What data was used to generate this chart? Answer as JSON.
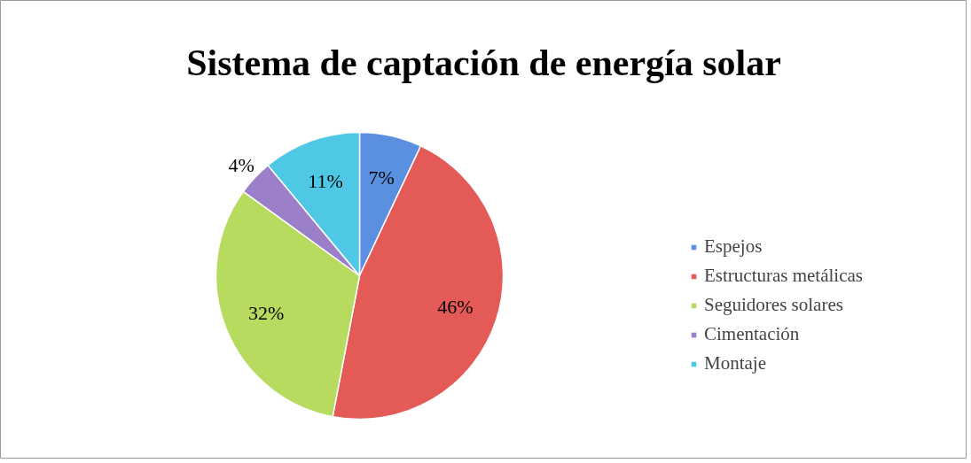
{
  "chart_data": {
    "type": "pie",
    "title": "Sistema de captación de energía solar",
    "categories": [
      "Espejos",
      "Estructuras metálicas",
      "Seguidores solares",
      "Cimentación",
      "Montaje"
    ],
    "values": [
      7,
      46,
      32,
      4,
      11
    ],
    "value_labels": [
      "7%",
      "46%",
      "32%",
      "4%",
      "11%"
    ],
    "colors": [
      "#5b8fe0",
      "#e35a57",
      "#b6db5e",
      "#9b7fc8",
      "#4fc8e6"
    ],
    "legend": "right"
  }
}
